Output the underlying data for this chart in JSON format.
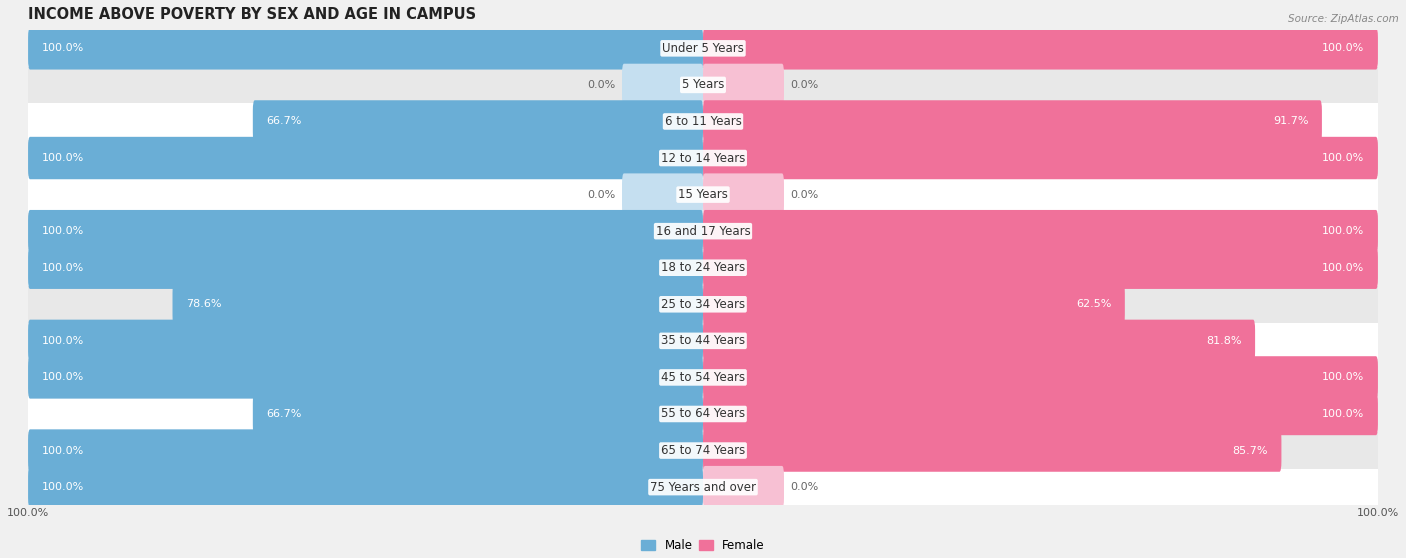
{
  "title": "INCOME ABOVE POVERTY BY SEX AND AGE IN CAMPUS",
  "source": "Source: ZipAtlas.com",
  "categories": [
    "Under 5 Years",
    "5 Years",
    "6 to 11 Years",
    "12 to 14 Years",
    "15 Years",
    "16 and 17 Years",
    "18 to 24 Years",
    "25 to 34 Years",
    "35 to 44 Years",
    "45 to 54 Years",
    "55 to 64 Years",
    "65 to 74 Years",
    "75 Years and over"
  ],
  "male_values": [
    100.0,
    0.0,
    66.7,
    100.0,
    0.0,
    100.0,
    100.0,
    78.6,
    100.0,
    100.0,
    66.7,
    100.0,
    100.0
  ],
  "female_values": [
    100.0,
    0.0,
    91.7,
    100.0,
    0.0,
    100.0,
    100.0,
    62.5,
    81.8,
    100.0,
    100.0,
    85.7,
    0.0
  ],
  "male_color": "#6aaed6",
  "female_color": "#f0719a",
  "male_color_light": "#c5dff0",
  "female_color_light": "#f7c0d3",
  "bar_height": 0.58,
  "background_color": "#f0f0f0",
  "row_color_odd": "#ffffff",
  "row_color_even": "#e8e8e8",
  "x_max": 100.0,
  "label_fontsize": 8.0,
  "title_fontsize": 10.5,
  "tick_fontsize": 8.0,
  "cat_fontsize": 8.5
}
